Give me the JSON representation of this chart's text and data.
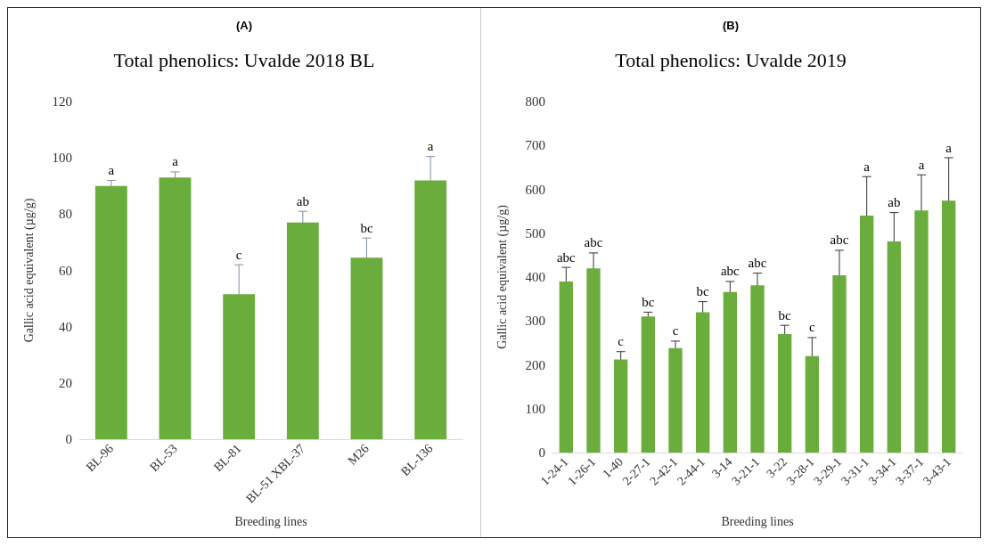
{
  "chart_data": [
    {
      "type": "bar",
      "subtitle": "(A)",
      "title": "Total phenolics: Uvalde 2018 BL",
      "xlabel": "Breeding lines",
      "ylabel": "Gallic acid equivalent (µg/g)",
      "categories": [
        "BL-96",
        "BL-53",
        "BL-81",
        "BL-51 XBL-37",
        "M26",
        "BL-136"
      ],
      "values": [
        90,
        93,
        51.5,
        77,
        64.5,
        92
      ],
      "errors": [
        2,
        2,
        10.5,
        4,
        7,
        8.5
      ],
      "color": "#6aad3d",
      "ylim": [
        0,
        120
      ],
      "yticks": [
        0,
        20,
        40,
        60,
        80,
        100,
        120
      ],
      "grid": false,
      "annotations": [
        {
          "text": "a",
          "x": "BL-96",
          "y": 92
        },
        {
          "text": "a",
          "x": "BL-53",
          "y": 95
        },
        {
          "text": "c",
          "x": "BL-81",
          "y": 62
        },
        {
          "text": "ab",
          "x": "BL-51 XBL-37",
          "y": 81
        },
        {
          "text": "bc",
          "x": "M26",
          "y": 71.5
        },
        {
          "text": "a",
          "x": "BL-136",
          "y": 100.5
        }
      ]
    },
    {
      "type": "bar",
      "subtitle": "(B)",
      "title": "Total phenolics: Uvalde 2019",
      "xlabel": "Breeding lines",
      "ylabel": "Gallic acid equivalent (µg/g)",
      "categories": [
        "1-24-1",
        "1-26-1",
        "1-40",
        "2-27-1",
        "2-42-1",
        "2-44-1",
        "3-14",
        "3-21-1",
        "3-22",
        "3-28-1",
        "3-29-1",
        "3-31-1",
        "3-34-1",
        "3-37-1",
        "3-43-1"
      ],
      "values": [
        390,
        420,
        212,
        310,
        238,
        320,
        366,
        381,
        270,
        220,
        404,
        540,
        481,
        552,
        574
      ],
      "errors": [
        32,
        35,
        18,
        10,
        16,
        24,
        24,
        28,
        20,
        42,
        57,
        89,
        66,
        81,
        98
      ],
      "color": "#6aad3d",
      "ylim": [
        0,
        800
      ],
      "yticks": [
        0,
        100,
        200,
        300,
        400,
        500,
        600,
        700,
        800
      ],
      "grid": false,
      "annotations": [
        {
          "text": "abc",
          "x": "1-24-1",
          "y": 422
        },
        {
          "text": "abc",
          "x": "1-26-1",
          "y": 455
        },
        {
          "text": "c",
          "x": "1-40",
          "y": 230
        },
        {
          "text": "bc",
          "x": "2-27-1",
          "y": 320
        },
        {
          "text": "c",
          "x": "2-42-1",
          "y": 254
        },
        {
          "text": "bc",
          "x": "2-44-1",
          "y": 344
        },
        {
          "text": "abc",
          "x": "3-14",
          "y": 390
        },
        {
          "text": "abc",
          "x": "3-21-1",
          "y": 409
        },
        {
          "text": "bc",
          "x": "3-22",
          "y": 290
        },
        {
          "text": "c",
          "x": "3-28-1",
          "y": 262
        },
        {
          "text": "abc",
          "x": "3-29-1",
          "y": 461
        },
        {
          "text": "a",
          "x": "3-31-1",
          "y": 629
        },
        {
          "text": "ab",
          "x": "3-34-1",
          "y": 547
        },
        {
          "text": "a",
          "x": "3-37-1",
          "y": 633
        },
        {
          "text": "a",
          "x": "3-43-1",
          "y": 672
        }
      ]
    }
  ]
}
